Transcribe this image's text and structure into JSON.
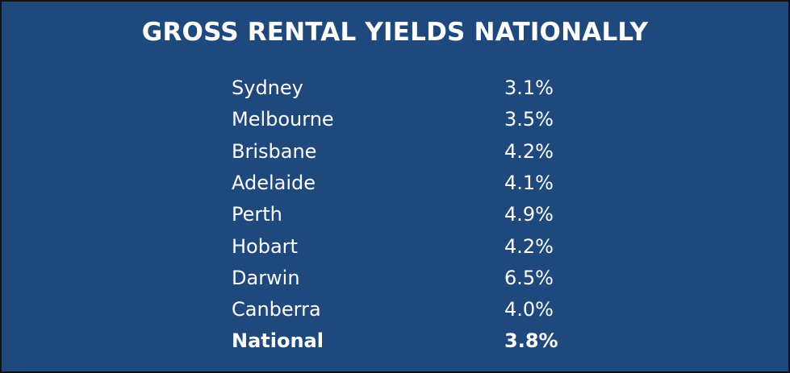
{
  "title": "GROSS RENTAL YIELDS NATIONALLY",
  "table": {
    "rows": [
      [
        "Sydney",
        "3.1%"
      ],
      [
        "Melbourne",
        "3.5%"
      ],
      [
        "Brisbane",
        "4.2%"
      ],
      [
        "Adelaide",
        "4.1%"
      ],
      [
        "Perth",
        "4.9%"
      ],
      [
        "Hobart",
        "4.2%"
      ],
      [
        "Darwin",
        "6.5%"
      ],
      [
        "Canberra",
        "4.0%"
      ],
      [
        "National",
        "3.8%"
      ]
    ]
  }
}
